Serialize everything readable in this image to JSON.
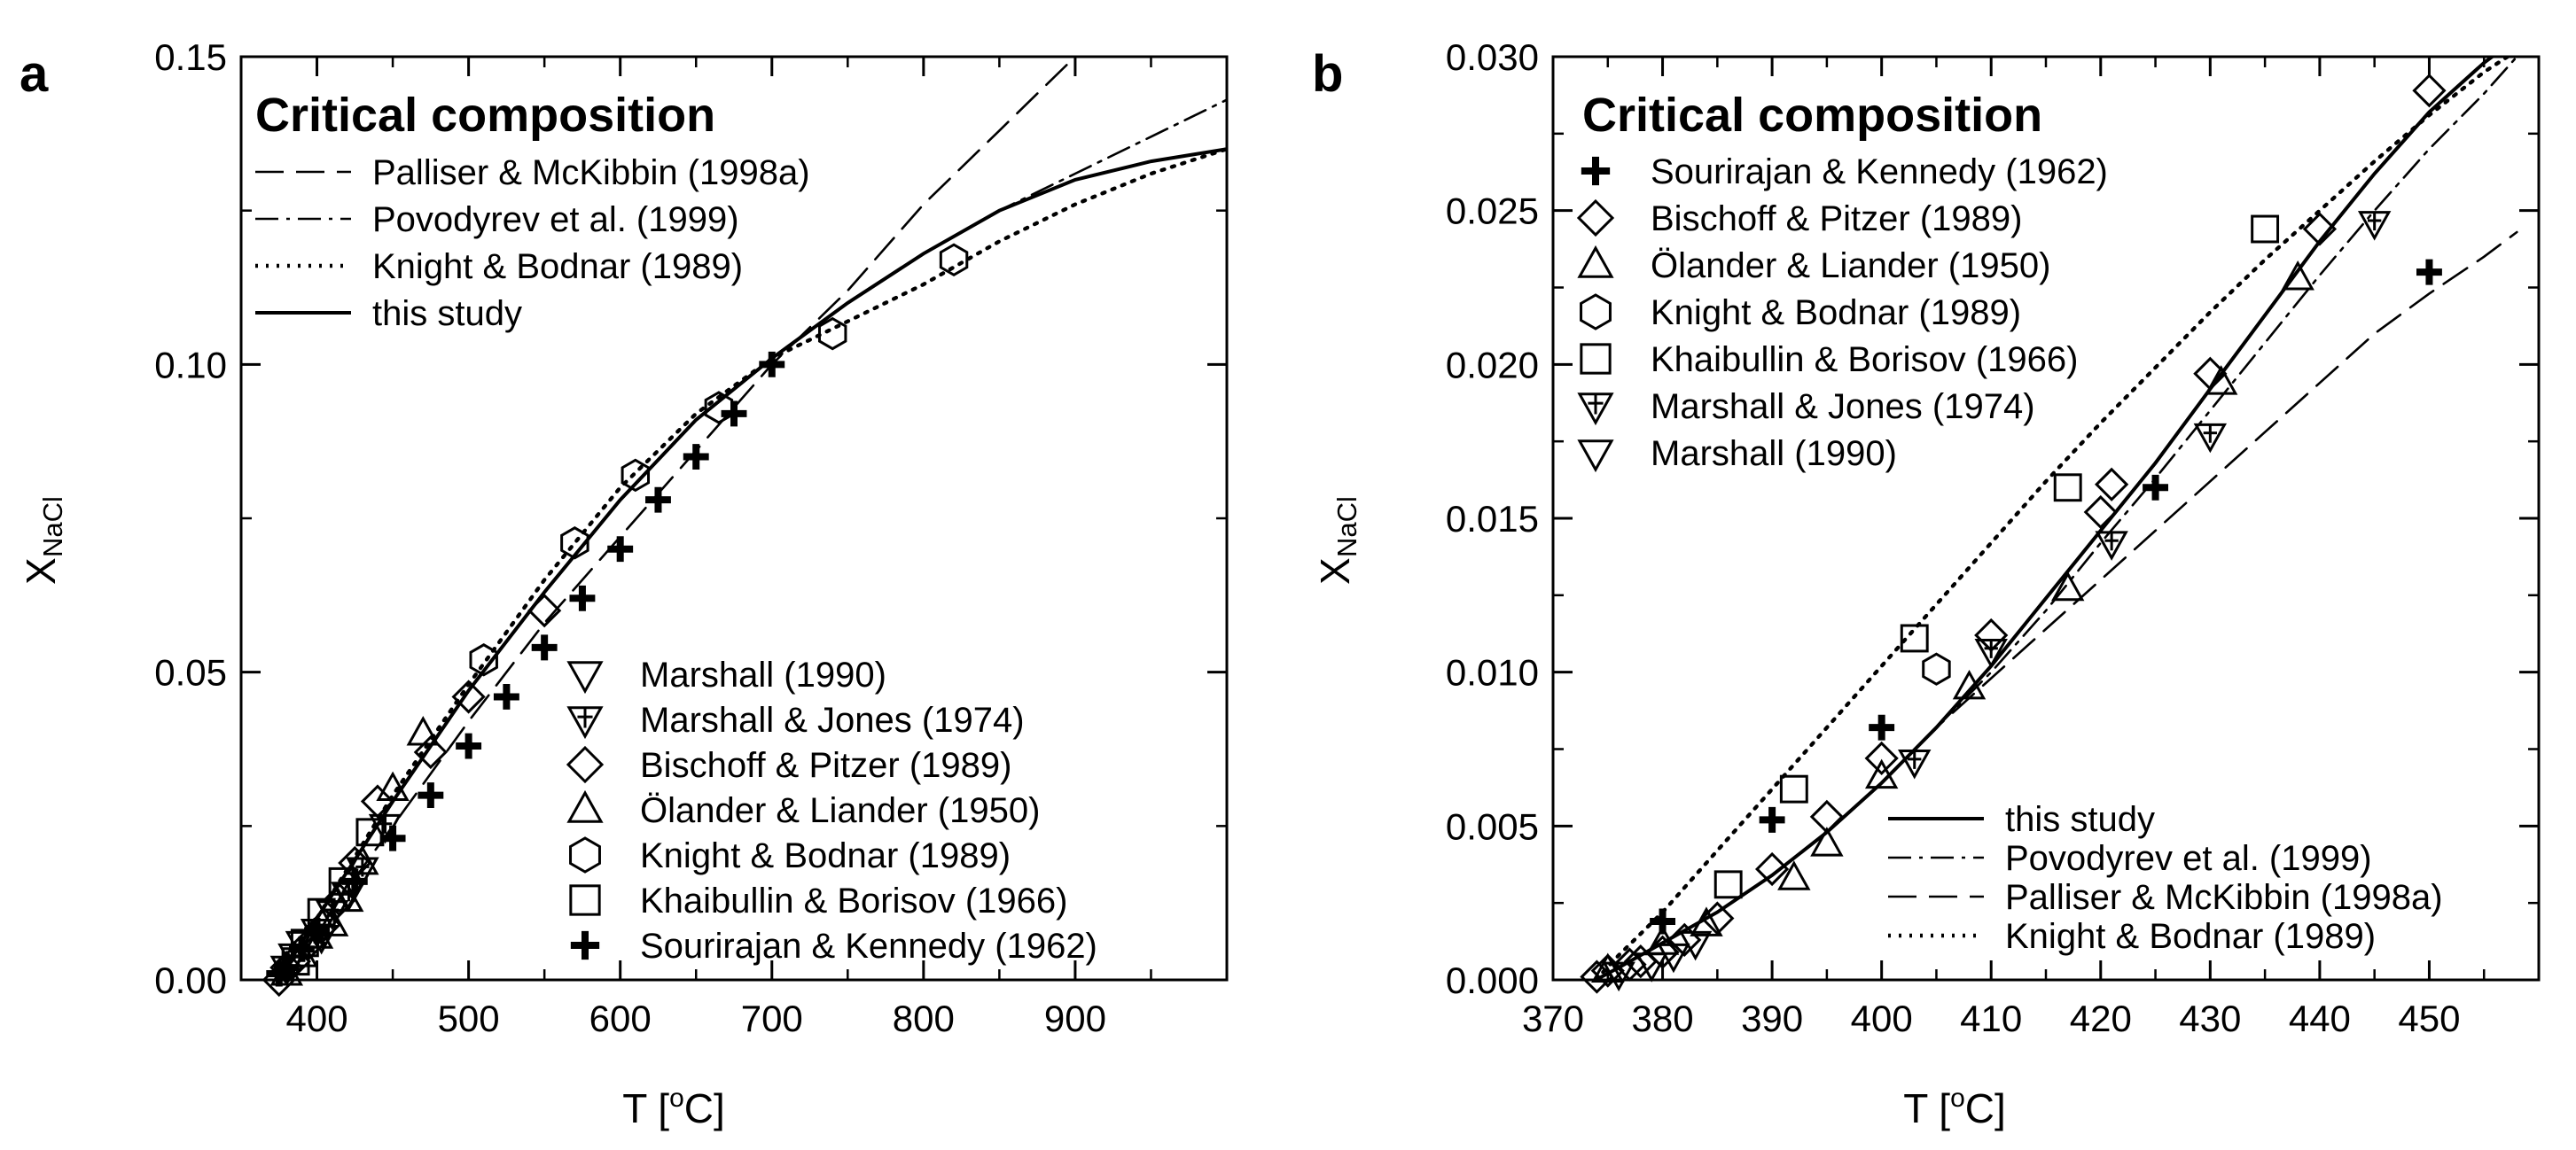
{
  "panels": [
    {
      "label": "a",
      "legend_title": "Critical composition",
      "ylabel_main": "X",
      "ylabel_sub": "NaCl",
      "xlabel_main": "T [",
      "xlabel_sup": "o",
      "xlabel_tail": "C]"
    },
    {
      "label": "b",
      "legend_title": "Critical composition",
      "ylabel_main": "X",
      "ylabel_sub": "NaCl",
      "xlabel_main": "T [",
      "xlabel_sup": "o",
      "xlabel_tail": "C]"
    }
  ],
  "chart_data": [
    {
      "type": "line",
      "panel": "a",
      "xlim": [
        350,
        1000
      ],
      "ylim": [
        0,
        0.15
      ],
      "xticks": [
        400,
        500,
        600,
        700,
        800,
        900
      ],
      "yticks": [
        0.0,
        0.05,
        0.1,
        0.15
      ],
      "xtick_labels": [
        "400",
        "500",
        "600",
        "700",
        "800",
        "900"
      ],
      "ytick_labels": [
        "0.00",
        "0.05",
        "0.10",
        "0.15"
      ],
      "grid": false,
      "legend_lines_placement": "top-left",
      "legend_markers_placement": "bottom-right",
      "lines": [
        {
          "name": "Palliser & McKibbin (1998a)",
          "style": "dashed",
          "x": [
            374,
            400,
            450,
            500,
            550,
            600,
            650,
            700,
            750,
            800,
            850,
            900
          ],
          "y": [
            0.0,
            0.008,
            0.025,
            0.042,
            0.058,
            0.072,
            0.086,
            0.1,
            0.112,
            0.126,
            0.138,
            0.15
          ]
        },
        {
          "name": "Povodyrev et al. (1999)",
          "style": "dashdot",
          "x": [
            374,
            400,
            450,
            500,
            550,
            600,
            650,
            700,
            750,
            800,
            850,
            900,
            950,
            1000
          ],
          "y": [
            0.0,
            0.01,
            0.029,
            0.047,
            0.063,
            0.078,
            0.091,
            0.101,
            0.11,
            0.118,
            0.125,
            0.131,
            0.137,
            0.143
          ]
        },
        {
          "name": "Knight & Bodnar (1989)",
          "style": "dotted",
          "x": [
            374,
            400,
            450,
            500,
            550,
            600,
            650,
            700,
            750,
            800,
            850,
            900,
            950,
            1000
          ],
          "y": [
            0.0,
            0.01,
            0.03,
            0.048,
            0.065,
            0.08,
            0.092,
            0.101,
            0.107,
            0.113,
            0.12,
            0.126,
            0.131,
            0.135
          ]
        },
        {
          "name": "this study",
          "style": "solid",
          "x": [
            374,
            400,
            450,
            500,
            550,
            600,
            650,
            700,
            750,
            800,
            850,
            900,
            950,
            1000
          ],
          "y": [
            0.0,
            0.01,
            0.029,
            0.047,
            0.063,
            0.078,
            0.091,
            0.101,
            0.11,
            0.118,
            0.125,
            0.13,
            0.133,
            0.135
          ]
        }
      ],
      "series": [
        {
          "name": "Marshall (1990)",
          "marker": "triangle-down",
          "x": [
            380,
            385,
            390,
            400,
            410,
            420,
            430
          ],
          "y": [
            0.002,
            0.004,
            0.006,
            0.008,
            0.011,
            0.014,
            0.018
          ]
        },
        {
          "name": "Marshall & Jones (1974)",
          "marker": "triangle-down-plus",
          "x": [
            403,
            410,
            421,
            430,
            445
          ],
          "y": [
            0.007,
            0.011,
            0.014,
            0.018,
            0.025
          ]
        },
        {
          "name": "Bischoff & Pitzer (1989)",
          "marker": "diamond",
          "x": [
            375,
            380,
            385,
            395,
            405,
            415,
            425,
            440,
            475,
            500,
            550
          ],
          "y": [
            0.0,
            0.002,
            0.003,
            0.006,
            0.009,
            0.013,
            0.019,
            0.029,
            0.037,
            0.046,
            0.06
          ]
        },
        {
          "name": "Ölander & Liander (1950)",
          "marker": "triangle-up",
          "x": [
            380,
            390,
            400,
            410,
            420,
            430,
            450,
            470
          ],
          "y": [
            0.001,
            0.004,
            0.007,
            0.009,
            0.013,
            0.019,
            0.031,
            0.04
          ]
        },
        {
          "name": "Knight & Bodnar (1989)",
          "marker": "hexagon",
          "x": [
            510,
            570,
            610,
            665,
            740,
            820
          ],
          "y": [
            0.052,
            0.071,
            0.082,
            0.093,
            0.105,
            0.117
          ]
        },
        {
          "name": "Khaibullin & Borisov (1966)",
          "marker": "square",
          "x": [
            386,
            392,
            403,
            417,
            435
          ],
          "y": [
            0.003,
            0.006,
            0.011,
            0.016,
            0.024
          ]
        },
        {
          "name": "Sourirajan & Kennedy (1962)",
          "marker": "plus",
          "x": [
            375,
            380,
            390,
            400,
            425,
            450,
            475,
            500,
            525,
            550,
            575,
            600,
            625,
            650,
            675,
            700
          ],
          "y": [
            0.001,
            0.002,
            0.005,
            0.008,
            0.016,
            0.023,
            0.03,
            0.038,
            0.046,
            0.054,
            0.062,
            0.07,
            0.078,
            0.085,
            0.092,
            0.1
          ]
        }
      ]
    },
    {
      "type": "line",
      "panel": "b",
      "xlim": [
        370,
        460
      ],
      "ylim": [
        0,
        0.03
      ],
      "xticks": [
        370,
        380,
        390,
        400,
        410,
        420,
        430,
        440,
        450
      ],
      "yticks": [
        0.0,
        0.005,
        0.01,
        0.015,
        0.02,
        0.025,
        0.03
      ],
      "xtick_labels": [
        "370",
        "380",
        "390",
        "400",
        "410",
        "420",
        "430",
        "440",
        "450"
      ],
      "ytick_labels": [
        "0.000",
        "0.005",
        "0.010",
        "0.015",
        "0.020",
        "0.025",
        "0.030"
      ],
      "grid": false,
      "legend_markers_placement": "top-left",
      "legend_lines_placement": "bottom-right",
      "lines": [
        {
          "name": "this study",
          "style": "solid",
          "x": [
            373.9,
            376,
            380,
            385,
            390,
            395,
            400,
            405,
            410,
            415,
            420,
            425,
            430,
            435,
            440,
            445,
            450,
            455,
            458
          ],
          "y": [
            0.0,
            0.0004,
            0.0012,
            0.0022,
            0.0034,
            0.0048,
            0.0064,
            0.0082,
            0.0102,
            0.0124,
            0.0146,
            0.0168,
            0.0192,
            0.0216,
            0.024,
            0.0262,
            0.0282,
            0.0298,
            0.0306
          ]
        },
        {
          "name": "Povodyrev et al. (1999)",
          "style": "dashdot",
          "x": [
            373.9,
            376,
            380,
            385,
            390,
            395,
            400,
            405,
            410,
            415,
            420,
            425,
            430,
            435,
            440,
            445,
            450,
            455,
            458
          ],
          "y": [
            0.0,
            0.0004,
            0.0012,
            0.0022,
            0.0034,
            0.0048,
            0.0064,
            0.0082,
            0.01,
            0.012,
            0.0142,
            0.0163,
            0.0185,
            0.0207,
            0.0229,
            0.025,
            0.027,
            0.0288,
            0.03
          ]
        },
        {
          "name": "Palliser & McKibbin (1998a)",
          "style": "dashed",
          "x": [
            373.9,
            376,
            380,
            385,
            390,
            395,
            400,
            405,
            410,
            415,
            420,
            425,
            430,
            435,
            440,
            445,
            450,
            455,
            458
          ],
          "y": [
            0.0,
            0.0004,
            0.0012,
            0.0022,
            0.0034,
            0.0048,
            0.0064,
            0.0082,
            0.0098,
            0.0114,
            0.013,
            0.0146,
            0.0162,
            0.0178,
            0.0194,
            0.021,
            0.0223,
            0.0235,
            0.0243
          ]
        },
        {
          "name": "Knight & Bodnar (1989)",
          "style": "dotted",
          "x": [
            373.9,
            376,
            380,
            385,
            390,
            395,
            400,
            405,
            410,
            415,
            420,
            425,
            430,
            435,
            440,
            445,
            450,
            455,
            458
          ],
          "y": [
            0.0,
            0.0008,
            0.0022,
            0.0042,
            0.0062,
            0.0082,
            0.0102,
            0.0122,
            0.0142,
            0.0162,
            0.0181,
            0.0199,
            0.0217,
            0.0234,
            0.025,
            0.0266,
            0.0281,
            0.0295,
            0.0302
          ]
        }
      ],
      "series": [
        {
          "name": "Sourirajan & Kennedy (1962)",
          "marker": "plus",
          "x": [
            380,
            390,
            400,
            425,
            450
          ],
          "y": [
            0.0019,
            0.0052,
            0.0082,
            0.016,
            0.023
          ]
        },
        {
          "name": "Bischoff & Pitzer (1989)",
          "marker": "diamond",
          "x": [
            374,
            375,
            377,
            378,
            380,
            382,
            385,
            390,
            395,
            400,
            410,
            420,
            421,
            430,
            440,
            450
          ],
          "y": [
            0.0001,
            0.0003,
            0.0005,
            0.0006,
            0.0009,
            0.0013,
            0.002,
            0.0036,
            0.0053,
            0.0072,
            0.0112,
            0.0152,
            0.0161,
            0.0197,
            0.0244,
            0.0289
          ]
        },
        {
          "name": "Ölander & Liander (1950)",
          "marker": "triangle-up",
          "x": [
            375,
            380,
            384,
            392,
            395,
            400,
            408,
            417,
            431,
            438
          ],
          "y": [
            0.0003,
            0.0012,
            0.0018,
            0.0033,
            0.0044,
            0.0066,
            0.0095,
            0.0127,
            0.0194,
            0.0228
          ]
        },
        {
          "name": "Knight & Bodnar (1989)",
          "marker": "hexagon",
          "x": [
            405
          ],
          "y": [
            0.0101
          ]
        },
        {
          "name": "Khaibullin & Borisov (1966)",
          "marker": "square",
          "x": [
            386,
            392,
            403,
            417,
            435
          ],
          "y": [
            0.0031,
            0.0062,
            0.0111,
            0.016,
            0.0244
          ]
        },
        {
          "name": "Marshall & Jones (1974)",
          "marker": "triangle-down-plus",
          "x": [
            403,
            410,
            421,
            430,
            445
          ],
          "y": [
            0.0071,
            0.0107,
            0.0142,
            0.0177,
            0.0246
          ]
        },
        {
          "name": "Marshall (1990)",
          "marker": "triangle-down",
          "x": [
            376,
            379,
            381,
            383
          ],
          "y": [
            0.0002,
            0.0005,
            0.0008,
            0.0012
          ]
        }
      ]
    }
  ]
}
